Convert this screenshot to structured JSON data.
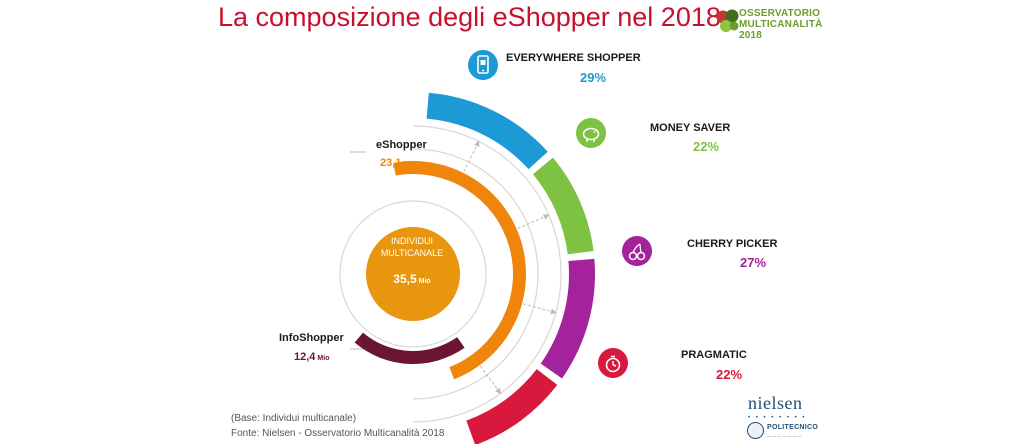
{
  "title": "La composizione degli eShopper nel 2018",
  "logo": {
    "line1": "OSSERVATORIO",
    "line2": "MULTICANALITÀ",
    "line3": "2018",
    "colors": [
      "#c0392b",
      "#6a9e2c",
      "#8cc63f",
      "#3f6e1e"
    ]
  },
  "chart_data": {
    "type": "pie",
    "center": {
      "line1": "INDIVIDUI",
      "line2": "MULTICANALE",
      "value": "35,5",
      "unit": "Mio",
      "total": 35.5,
      "color": "#e8960e"
    },
    "breakdown": [
      {
        "label": "eShopper",
        "value_text": "23,1",
        "unit": "Mio",
        "value": 23.1,
        "color": "#f0850c"
      },
      {
        "label": "InfoShopper",
        "value_text": "12,4",
        "unit": "Mio",
        "value": 12.4,
        "color": "#6b1532"
      }
    ],
    "segments": [
      {
        "label": "EVERYWHERE SHOPPER",
        "pct_text": "29%",
        "value": 29,
        "color": "#1c9ad6",
        "icon": "smartphone-cart-icon"
      },
      {
        "label": "MONEY SAVER",
        "pct_text": "22%",
        "value": 22,
        "color": "#7dc242",
        "icon": "piggy-bank-icon"
      },
      {
        "label": "CHERRY PICKER",
        "pct_text": "27%",
        "value": 27,
        "color": "#a4229c",
        "icon": "cherry-icon"
      },
      {
        "label": "PRAGMATIC",
        "pct_text": "22%",
        "value": 22,
        "color": "#d8183c",
        "icon": "stopwatch-icon"
      }
    ]
  },
  "footnotes": {
    "base": "(Base: Individui multicanale)",
    "source": "Fonte: Nielsen - Osservatorio Multicanalità 2018"
  },
  "nielsen_logo": "nielsen",
  "polimi_logo": "POLITECNICO"
}
